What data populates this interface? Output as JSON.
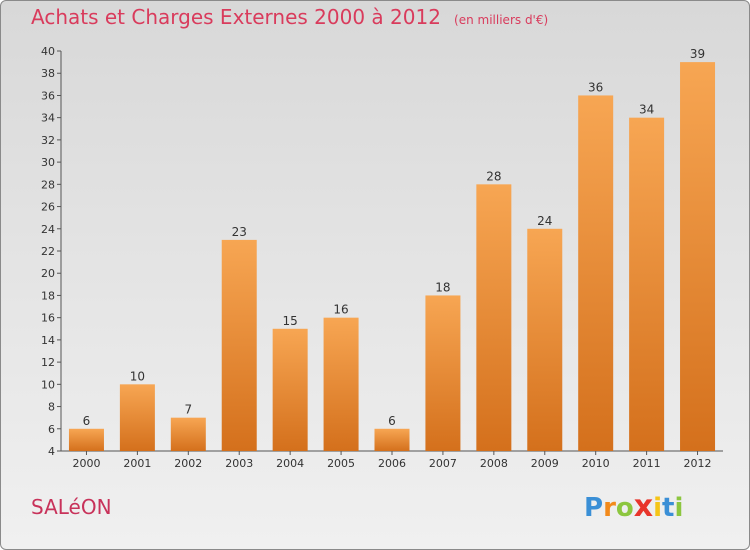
{
  "header": {
    "title": "Achats et Charges Externes 2000 à 2012",
    "subtitle": "(en milliers d'€)"
  },
  "footer": {
    "town": "SALéON",
    "logo": {
      "letters": [
        "P",
        "r",
        "o",
        "x",
        "i",
        "t",
        "i"
      ],
      "colors": [
        "#3a8fd6",
        "#f28a1b",
        "#8cc63f",
        "#e8352b",
        "#f5c518",
        "#3a8fd6",
        "#8cc63f"
      ]
    }
  },
  "chart_data": {
    "type": "bar",
    "title": "Achats et Charges Externes 2000 à 2012",
    "subtitle": "(en milliers d'€)",
    "categories": [
      "2000",
      "2001",
      "2002",
      "2003",
      "2004",
      "2005",
      "2006",
      "2007",
      "2008",
      "2009",
      "2010",
      "2011",
      "2012"
    ],
    "values": [
      6,
      10,
      7,
      23,
      15,
      16,
      6,
      18,
      28,
      24,
      36,
      34,
      39
    ],
    "ylim": [
      4,
      40
    ],
    "yticks": [
      4,
      6,
      8,
      10,
      12,
      14,
      16,
      18,
      20,
      22,
      24,
      26,
      28,
      30,
      32,
      34,
      36,
      38,
      40
    ],
    "grid": false,
    "bar_color_top": "#f7a653",
    "bar_color_bottom": "#d4701c",
    "axis_color": "#555555"
  }
}
